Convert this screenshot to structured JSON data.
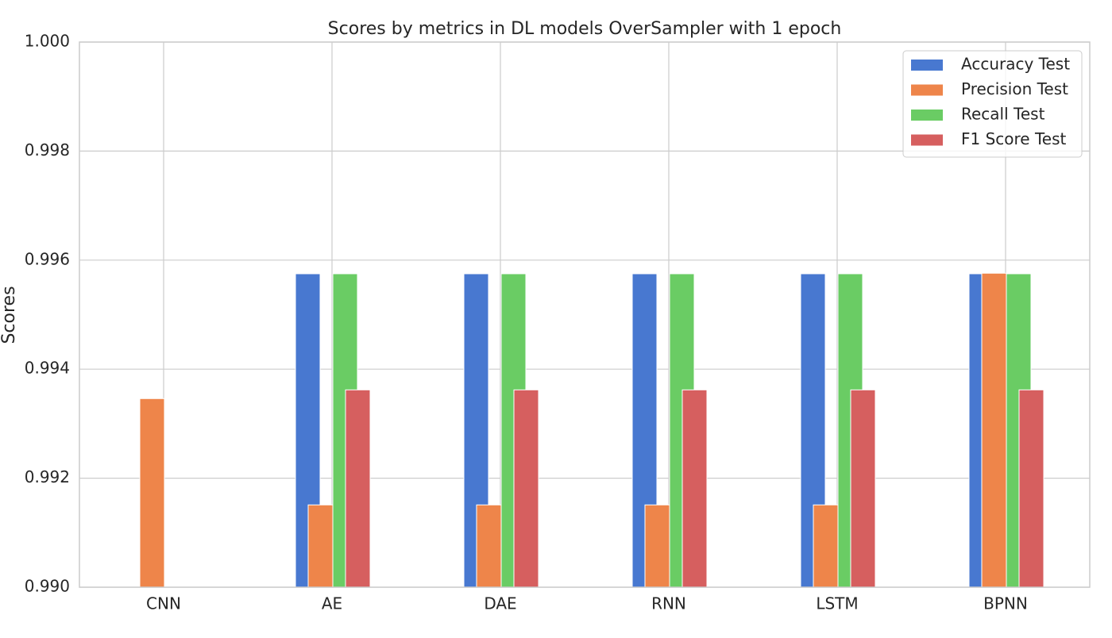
{
  "chart_data": {
    "type": "bar",
    "title": "Scores by metrics in DL models OverSampler with 1 epoch",
    "y_label": "Scores",
    "categories": [
      "CNN",
      "AE",
      "DAE",
      "RNN",
      "LSTM",
      "BPNN"
    ],
    "series": [
      {
        "name": "Accuracy Test",
        "color": "#4878d0",
        "values": [
          null,
          0.99575,
          0.99575,
          0.99575,
          0.99575,
          0.99575
        ]
      },
      {
        "name": "Precision Test",
        "color": "#ee854a",
        "values": [
          0.99346,
          0.99151,
          0.99151,
          0.99151,
          0.99151,
          0.99576
        ]
      },
      {
        "name": "Recall Test",
        "color": "#6acc64",
        "values": [
          null,
          0.99575,
          0.99575,
          0.99575,
          0.99575,
          0.99575
        ]
      },
      {
        "name": "F1 Score Test",
        "color": "#d65f5f",
        "values": [
          null,
          0.99362,
          0.99362,
          0.99362,
          0.99362,
          0.99362
        ]
      }
    ],
    "ylim": [
      0.99,
      1.0
    ],
    "yticks": [
      {
        "value": 0.99,
        "label": "0.990"
      },
      {
        "value": 0.992,
        "label": "0.992"
      },
      {
        "value": 0.994,
        "label": "0.994"
      },
      {
        "value": 0.996,
        "label": "0.996"
      },
      {
        "value": 0.998,
        "label": "0.998"
      },
      {
        "value": 1.0,
        "label": "1.000"
      }
    ],
    "grid": true,
    "legend": "upper right"
  }
}
